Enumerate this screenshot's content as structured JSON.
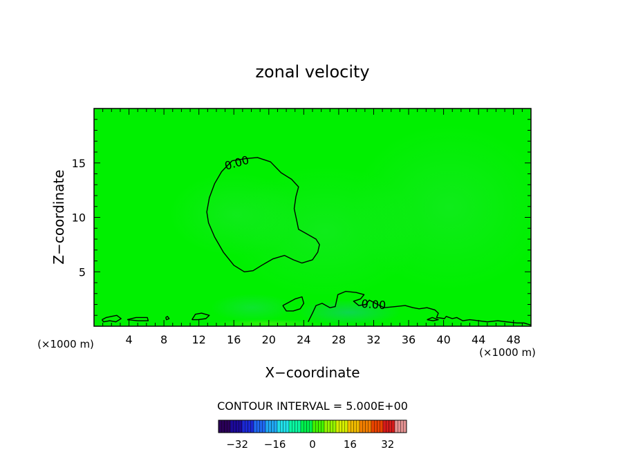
{
  "chart_data": {
    "type": "heatmap",
    "title": "zonal velocity",
    "xlabel": "X−coordinate",
    "ylabel": "Z−coordinate",
    "x_unit_label": "(×1000 m)",
    "y_unit_label": "(×1000 m)",
    "xlim": [
      0,
      50
    ],
    "ylim": [
      0,
      20
    ],
    "x_ticks": [
      4,
      8,
      12,
      16,
      20,
      24,
      28,
      32,
      36,
      40,
      44,
      48
    ],
    "y_ticks": [
      5,
      10,
      15
    ],
    "x_tick_labels": [
      "4",
      "8",
      "12",
      "16",
      "20",
      "24",
      "28",
      "32",
      "36",
      "40",
      "44",
      "48"
    ],
    "y_tick_labels": [
      "5",
      "10",
      "15"
    ],
    "grid": false,
    "background_color": "#00f000",
    "contour_interval_text": "CONTOUR INTERVAL = 5.000E+00",
    "contour_labels": [
      "0.00",
      "0.00"
    ],
    "contours": [
      {
        "level": 0,
        "label": "0.00",
        "points": [
          [
            15.8,
            15.2
          ],
          [
            17.4,
            15.4
          ],
          [
            18.7,
            15.5
          ],
          [
            20.2,
            15.1
          ],
          [
            21.4,
            14.1
          ],
          [
            22.6,
            13.5
          ],
          [
            23.4,
            12.8
          ],
          [
            23.1,
            11.9
          ],
          [
            22.9,
            10.8
          ],
          [
            23.2,
            9.7
          ],
          [
            23.4,
            8.9
          ],
          [
            24.1,
            8.6
          ],
          [
            25.4,
            8.0
          ],
          [
            25.8,
            7.5
          ],
          [
            25.6,
            6.8
          ],
          [
            25.0,
            6.1
          ],
          [
            23.8,
            5.8
          ],
          [
            22.8,
            6.1
          ],
          [
            21.8,
            6.5
          ],
          [
            20.5,
            6.2
          ],
          [
            19.2,
            5.6
          ],
          [
            18.2,
            5.1
          ],
          [
            17.2,
            5.0
          ],
          [
            16.0,
            5.6
          ],
          [
            14.8,
            6.8
          ],
          [
            13.8,
            8.2
          ],
          [
            13.1,
            9.5
          ],
          [
            12.9,
            10.5
          ],
          [
            13.2,
            11.8
          ],
          [
            13.8,
            13.1
          ],
          [
            14.6,
            14.2
          ],
          [
            15.8,
            15.2
          ]
        ]
      },
      {
        "level": 0,
        "label": "",
        "points": [
          [
            21.6,
            1.9
          ],
          [
            22.3,
            2.2
          ],
          [
            23.0,
            2.5
          ],
          [
            23.8,
            2.7
          ],
          [
            24.0,
            2.1
          ],
          [
            23.6,
            1.6
          ],
          [
            22.8,
            1.4
          ],
          [
            22.0,
            1.4
          ],
          [
            21.6,
            1.9
          ]
        ]
      },
      {
        "level": 0,
        "label": "0.00",
        "points": [
          [
            24.5,
            0.4
          ],
          [
            25.0,
            1.2
          ],
          [
            25.4,
            1.9
          ],
          [
            26.1,
            2.1
          ],
          [
            27.0,
            1.7
          ],
          [
            27.6,
            1.8
          ],
          [
            27.9,
            2.9
          ],
          [
            28.8,
            3.2
          ],
          [
            30.0,
            3.1
          ],
          [
            30.9,
            2.9
          ],
          [
            30.5,
            2.5
          ],
          [
            29.7,
            2.3
          ],
          [
            30.3,
            1.9
          ],
          [
            31.1,
            2.0
          ],
          [
            31.5,
            2.4
          ],
          [
            32.2,
            2.1
          ],
          [
            33.2,
            1.7
          ],
          [
            34.5,
            1.8
          ],
          [
            35.6,
            1.9
          ],
          [
            36.5,
            1.7
          ],
          [
            37.2,
            1.6
          ],
          [
            38.1,
            1.7
          ],
          [
            39.0,
            1.5
          ],
          [
            39.4,
            1.2
          ],
          [
            39.2,
            0.8
          ],
          [
            40.1,
            0.7
          ],
          [
            40.3,
            0.9
          ],
          [
            41.0,
            0.7
          ],
          [
            41.5,
            0.8
          ],
          [
            42.2,
            0.5
          ],
          [
            43.0,
            0.6
          ],
          [
            44.0,
            0.5
          ],
          [
            45.0,
            0.4
          ],
          [
            46.2,
            0.5
          ],
          [
            47.2,
            0.4
          ],
          [
            48.4,
            0.3
          ],
          [
            49.2,
            0.3
          ],
          [
            50.0,
            0.1
          ]
        ]
      },
      {
        "level": 0,
        "label": "",
        "points": [
          [
            0.9,
            0.6
          ],
          [
            1.4,
            0.8
          ],
          [
            2.0,
            0.9
          ],
          [
            2.6,
            1.0
          ],
          [
            3.1,
            0.7
          ],
          [
            2.5,
            0.4
          ],
          [
            1.8,
            0.5
          ],
          [
            1.1,
            0.4
          ],
          [
            0.9,
            0.6
          ]
        ]
      },
      {
        "level": 0,
        "label": "",
        "points": [
          [
            3.8,
            0.6
          ],
          [
            4.8,
            0.8
          ],
          [
            6.1,
            0.8
          ],
          [
            6.2,
            0.5
          ],
          [
            5.0,
            0.5
          ],
          [
            3.8,
            0.6
          ]
        ]
      },
      {
        "level": 0,
        "label": "",
        "points": [
          [
            8.2,
            0.8
          ],
          [
            8.4,
            0.9
          ],
          [
            8.6,
            0.7
          ],
          [
            8.3,
            0.6
          ],
          [
            8.2,
            0.8
          ]
        ]
      },
      {
        "level": 0,
        "label": "",
        "points": [
          [
            11.2,
            0.6
          ],
          [
            11.6,
            1.1
          ],
          [
            12.3,
            1.2
          ],
          [
            13.2,
            1.0
          ],
          [
            12.8,
            0.7
          ],
          [
            11.9,
            0.6
          ],
          [
            11.2,
            0.6
          ]
        ]
      },
      {
        "level": 0,
        "label": "",
        "points": [
          [
            38.1,
            0.6
          ],
          [
            38.7,
            0.8
          ],
          [
            39.4,
            0.6
          ],
          [
            38.8,
            0.5
          ],
          [
            38.1,
            0.6
          ]
        ]
      }
    ],
    "colorbar": {
      "ticks": [
        -32,
        -16,
        0,
        16,
        32
      ],
      "tick_labels": [
        "−32",
        "−16",
        "0",
        "16",
        "32"
      ],
      "range": [
        -40,
        40
      ],
      "colors": [
        "#2a0058",
        "#1c0a99",
        "#1b28d5",
        "#1f67f0",
        "#20a7f3",
        "#21e0ea",
        "#0bf6a1",
        "#00f04c",
        "#42f300",
        "#93f300",
        "#d5ee00",
        "#f0bb00",
        "#f17e00",
        "#ea4300",
        "#d51b1b",
        "#e39292"
      ]
    }
  }
}
